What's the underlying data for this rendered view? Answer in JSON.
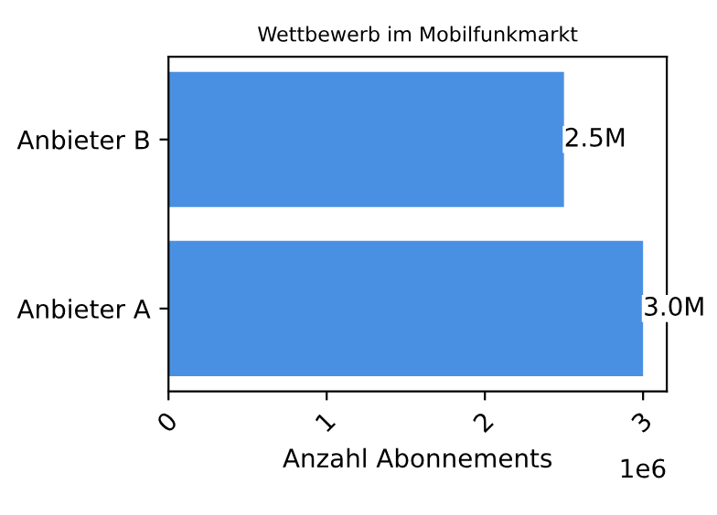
{
  "chart_data": {
    "type": "bar",
    "orientation": "horizontal",
    "title": "Wettbewerb im Mobilfunkmarkt",
    "xlabel": "Anzahl Abonnements",
    "categories": [
      "Anbieter B",
      "Anbieter A"
    ],
    "values": [
      2.5,
      3.0
    ],
    "value_labels": [
      "2.5M",
      "3.0M"
    ],
    "color": "#4a90e2",
    "xlim": [
      0,
      3.15
    ],
    "xticks": [
      0,
      1,
      2,
      3
    ],
    "annotations": [
      "1e6"
    ],
    "grid": false,
    "legend": false
  }
}
